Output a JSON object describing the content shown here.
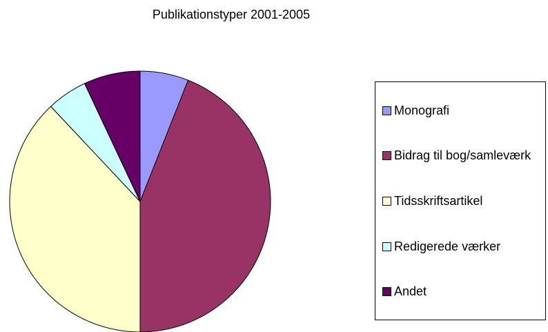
{
  "chart_data": {
    "type": "pie",
    "title": "Publikationstyper 2001-2005",
    "categories": [
      "Monografi",
      "Bidrag til bog/samleværk",
      "Tidsskriftsartikel",
      "Redigerede værker",
      "Andet"
    ],
    "values": [
      6,
      44,
      38,
      5,
      7
    ],
    "colors": [
      "#9999ff",
      "#993366",
      "#ffffcc",
      "#ccffff",
      "#660066"
    ],
    "legend": "right"
  }
}
